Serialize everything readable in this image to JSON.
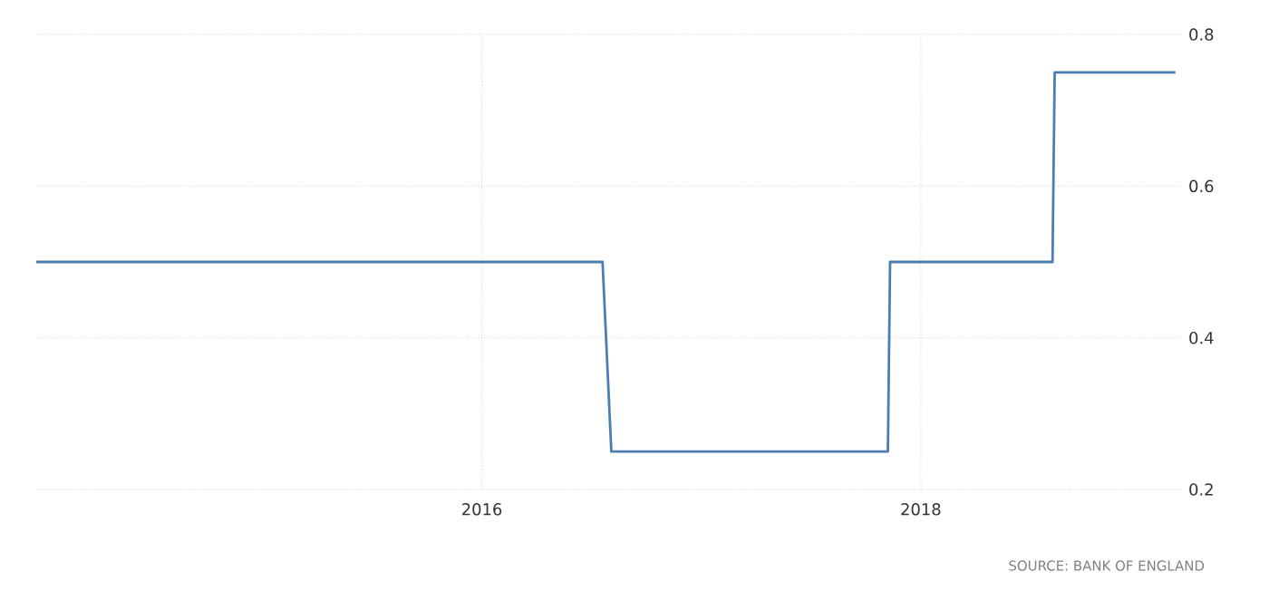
{
  "chart_data": {
    "type": "line",
    "x": [
      2013.97,
      2016.55,
      2016.59,
      2017.85,
      2017.86,
      2018.6,
      2018.61,
      2019.16
    ],
    "series": [
      {
        "color": "#4a7eb0",
        "values": [
          0.5,
          0.5,
          0.25,
          0.25,
          0.5,
          0.5,
          0.75,
          0.75
        ]
      }
    ],
    "xlim": [
      2013.97,
      2019.19
    ],
    "xticks": [
      2016,
      2018
    ],
    "ylim": [
      0.2,
      0.8
    ],
    "yticks": [
      0.2,
      0.4,
      0.6,
      0.8
    ],
    "grid": true,
    "marker": "none",
    "line_style": "solid",
    "annotations": [
      "SOURCE: BANK OF ENGLAND"
    ]
  }
}
